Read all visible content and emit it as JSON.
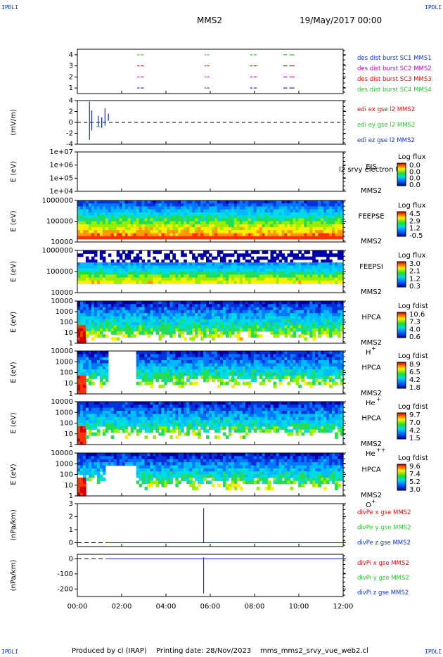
{
  "header": {
    "mission": "MMS2",
    "date": "19/May/2017 00:00",
    "corner_label": "IPDLI"
  },
  "footer": {
    "produced_by": "Produced by cl (IRAP)",
    "printing_date": "Printing date: 28/Nov/2023",
    "filename": "mms_mms2_srvy_vue_web2.cl"
  },
  "colors": {
    "sc1": "#22cc22",
    "sc2": "#dd1111",
    "sc3": "#cc00cc",
    "sc4": "#1133cc",
    "panel_bg": "#ffffff"
  },
  "x_axis": {
    "ticks": [
      "00:00",
      "02:00",
      "04:00",
      "06:00",
      "08:00",
      "10:00",
      "12:00"
    ],
    "range_hours": [
      0,
      12
    ]
  },
  "chart_data": [
    {
      "type": "line",
      "id": "burst",
      "ylabel": "",
      "yticks": [
        "1",
        "2",
        "3",
        "4"
      ],
      "ylim": [
        0.5,
        4.5
      ],
      "legend": [
        {
          "text": "des dist burst SC1 MMS1",
          "color": "#1133cc"
        },
        {
          "text": "des dist burst SC2 MMS2",
          "color": "#cc00cc"
        },
        {
          "text": "des dist burst SC3 MMS3",
          "color": "#dd1111"
        },
        {
          "text": "des dist burst SC4 MMS4",
          "color": "#22cc22"
        }
      ],
      "intervals": [
        [
          2.7,
          3.0
        ],
        [
          5.75,
          5.95
        ],
        [
          7.8,
          8.1
        ],
        [
          9.3,
          9.8
        ]
      ]
    },
    {
      "type": "line",
      "id": "edi",
      "ylabel": "(mV/m)",
      "yticks": [
        "-4",
        "-2",
        "0",
        "2",
        "4"
      ],
      "ylim": [
        -4,
        4
      ],
      "legend": [
        {
          "text": "edi ex gse l2 MMS2",
          "color": "#dd1111"
        },
        {
          "text": "edi ey gse l2 MMS2",
          "color": "#22cc22"
        },
        {
          "text": "edi ez gse l2 MMS2",
          "color": "#1133cc"
        }
      ],
      "spikes": [
        {
          "x": 0.55,
          "min": -3.2,
          "max": 3.8
        },
        {
          "x": 0.65,
          "min": -1.5,
          "max": 2.2
        },
        {
          "x": 0.95,
          "min": -0.8,
          "max": 1.2
        },
        {
          "x": 1.1,
          "min": -1.0,
          "max": 0.9
        },
        {
          "x": 1.25,
          "min": -0.6,
          "max": 2.6
        },
        {
          "x": 1.4,
          "min": 0.3,
          "max": 1.6
        }
      ]
    },
    {
      "type": "heatmap",
      "id": "eis",
      "ylabel": "E (eV)",
      "yticks": [
        "1e+04",
        "1e+05",
        "1e+06",
        "1e+07"
      ],
      "instrument": "EIS",
      "spacecraft": "MMS2",
      "overlay_text": "l2 srvy electron to",
      "cbar_title": "Log flux",
      "cbar_ticks": [
        "0.0",
        "0.0",
        "0.0",
        "0.0"
      ]
    },
    {
      "type": "heatmap",
      "id": "feepse",
      "ylabel": "E (eV)",
      "yticks": [
        "10000",
        "100000",
        "1000000"
      ],
      "instrument": "FEEPSE",
      "spacecraft": "MMS2",
      "cbar_title": "Log flux",
      "cbar_ticks": [
        "4.5",
        "2.9",
        "1.2",
        "-0.5"
      ]
    },
    {
      "type": "heatmap",
      "id": "feepsi",
      "ylabel": "E (eV)",
      "yticks": [
        "10000",
        "100000",
        "1000000"
      ],
      "instrument": "FEEPSI",
      "spacecraft": "MMS2",
      "cbar_title": "Log flux",
      "cbar_ticks": [
        "3.0",
        "2.1",
        "1.2",
        "0.3"
      ]
    },
    {
      "type": "heatmap",
      "id": "hpca_h",
      "ylabel": "E (eV)",
      "yticks": [
        "1",
        "10",
        "100",
        "1000",
        "10000"
      ],
      "instrument": "HPCA",
      "spacecraft": "MMS2",
      "species": "H",
      "charge": "+",
      "cbar_title": "Log fdist",
      "cbar_ticks": [
        "10.6",
        "7.3",
        "4.0",
        "0.6"
      ]
    },
    {
      "type": "heatmap",
      "id": "hpca_he",
      "ylabel": "E (eV)",
      "yticks": [
        "1",
        "10",
        "100",
        "1000",
        "10000"
      ],
      "instrument": "HPCA",
      "spacecraft": "MMS2",
      "species": "He",
      "charge": "+",
      "cbar_title": "Log fdist",
      "cbar_ticks": [
        "8.9",
        "6.5",
        "4.2",
        "1.8"
      ]
    },
    {
      "type": "heatmap",
      "id": "hpca_he2",
      "ylabel": "E (eV)",
      "yticks": [
        "1",
        "10",
        "100",
        "1000",
        "10000"
      ],
      "instrument": "HPCA",
      "spacecraft": "MMS2",
      "species": "He",
      "charge": "++",
      "cbar_title": "Log fdist",
      "cbar_ticks": [
        "9.7",
        "7.0",
        "4.2",
        "1.5"
      ]
    },
    {
      "type": "heatmap",
      "id": "hpca_o",
      "ylabel": "E (eV)",
      "yticks": [
        "1",
        "10",
        "100",
        "1000",
        "10000"
      ],
      "instrument": "HPCA",
      "spacecraft": "MMS2",
      "species": "O",
      "charge": "+",
      "cbar_title": "Log fdist",
      "cbar_ticks": [
        "9.6",
        "7.4",
        "5.2",
        "3.0"
      ]
    },
    {
      "type": "line",
      "id": "divpe",
      "ylabel": "(nPa/km)",
      "yticks": [
        "0",
        "1",
        "2",
        "3"
      ],
      "ylim": [
        -0.3,
        3
      ],
      "legend": [
        {
          "text": "divPe x gse MMS2",
          "color": "#dd1111"
        },
        {
          "text": "divPe y gse MMS2",
          "color": "#22cc22"
        },
        {
          "text": "divPe z gse MMS2",
          "color": "#1133cc"
        }
      ],
      "baseline": 0,
      "spike": {
        "x": 5.7,
        "min": 0,
        "max": 2.65
      }
    },
    {
      "type": "line",
      "id": "divpi",
      "ylabel": "(nPa/km)",
      "yticks": [
        "-200",
        "-100",
        "0"
      ],
      "ylim": [
        -250,
        30
      ],
      "legend": [
        {
          "text": "divPi x gse MMS2",
          "color": "#dd1111"
        },
        {
          "text": "divPi y gse MMS2",
          "color": "#22cc22"
        },
        {
          "text": "divPi z gse MMS2",
          "color": "#1133cc"
        }
      ],
      "baseline": 0,
      "spike": {
        "x": 5.7,
        "min": -230,
        "max": 10
      }
    }
  ]
}
